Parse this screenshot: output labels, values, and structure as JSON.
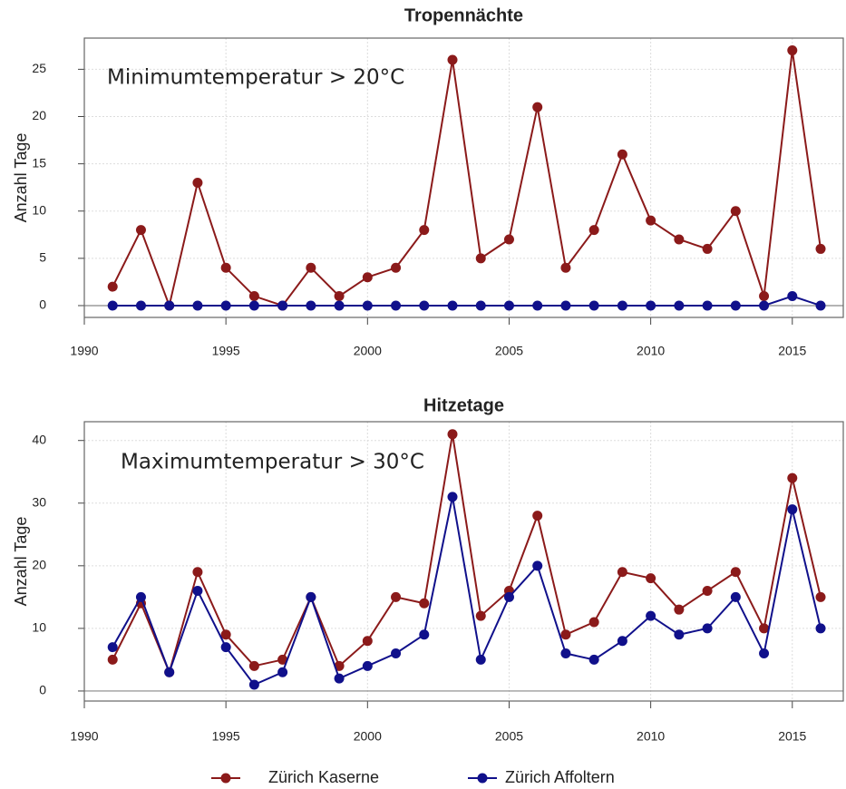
{
  "chart_data": [
    {
      "type": "line",
      "title": "Tropennächte",
      "annotation": "Minimumtemperatur > 20°C",
      "y_label": "Anzahl Tage",
      "x": [
        1991,
        1992,
        1993,
        1994,
        1995,
        1996,
        1997,
        1998,
        1999,
        2000,
        2001,
        2002,
        2003,
        2004,
        2005,
        2006,
        2007,
        2008,
        2009,
        2010,
        2011,
        2012,
        2013,
        2014,
        2015,
        2016
      ],
      "series": [
        {
          "name": "Zürich Kaserne",
          "color": "#8b1a1a",
          "values": [
            2,
            8,
            0,
            13,
            4,
            1,
            0,
            4,
            1,
            3,
            4,
            8,
            26,
            5,
            7,
            21,
            4,
            8,
            16,
            9,
            7,
            6,
            10,
            1,
            27,
            6
          ]
        },
        {
          "name": "Zürich Affoltern",
          "color": "#10108b",
          "values": [
            0,
            0,
            0,
            0,
            0,
            0,
            0,
            0,
            0,
            0,
            0,
            0,
            0,
            0,
            0,
            0,
            0,
            0,
            0,
            0,
            0,
            0,
            0,
            0,
            1,
            0
          ]
        }
      ],
      "xlim": [
        1990,
        2016.8
      ],
      "xticks": [
        1990,
        1995,
        2000,
        2005,
        2010,
        2015
      ],
      "ylim": [
        -1.25,
        28.3
      ],
      "yticks": [
        0,
        5,
        10,
        15,
        20,
        25
      ],
      "grid": true
    },
    {
      "type": "line",
      "title": "Hitzetage",
      "annotation": "Maximumtemperatur > 30°C",
      "y_label": "Anzahl Tage",
      "x": [
        1991,
        1992,
        1993,
        1994,
        1995,
        1996,
        1997,
        1998,
        1999,
        2000,
        2001,
        2002,
        2003,
        2004,
        2005,
        2006,
        2007,
        2008,
        2009,
        2010,
        2011,
        2012,
        2013,
        2014,
        2015,
        2016
      ],
      "series": [
        {
          "name": "Zürich Kaserne",
          "color": "#8b1a1a",
          "values": [
            5,
            14,
            3,
            19,
            9,
            4,
            5,
            15,
            4,
            8,
            15,
            14,
            41,
            12,
            16,
            28,
            9,
            11,
            19,
            18,
            13,
            16,
            19,
            10,
            34,
            15
          ]
        },
        {
          "name": "Zürich Affoltern",
          "color": "#10108b",
          "values": [
            7,
            15,
            3,
            16,
            7,
            1,
            3,
            15,
            2,
            4,
            6,
            9,
            31,
            5,
            15,
            20,
            6,
            5,
            8,
            12,
            9,
            10,
            15,
            6,
            29,
            10
          ]
        }
      ],
      "xlim": [
        1990,
        2016.8
      ],
      "xticks": [
        1990,
        1995,
        2000,
        2005,
        2010,
        2015
      ],
      "ylim": [
        -1.6,
        43.0
      ],
      "yticks": [
        0,
        10,
        20,
        30,
        40
      ],
      "grid": true
    }
  ]
}
